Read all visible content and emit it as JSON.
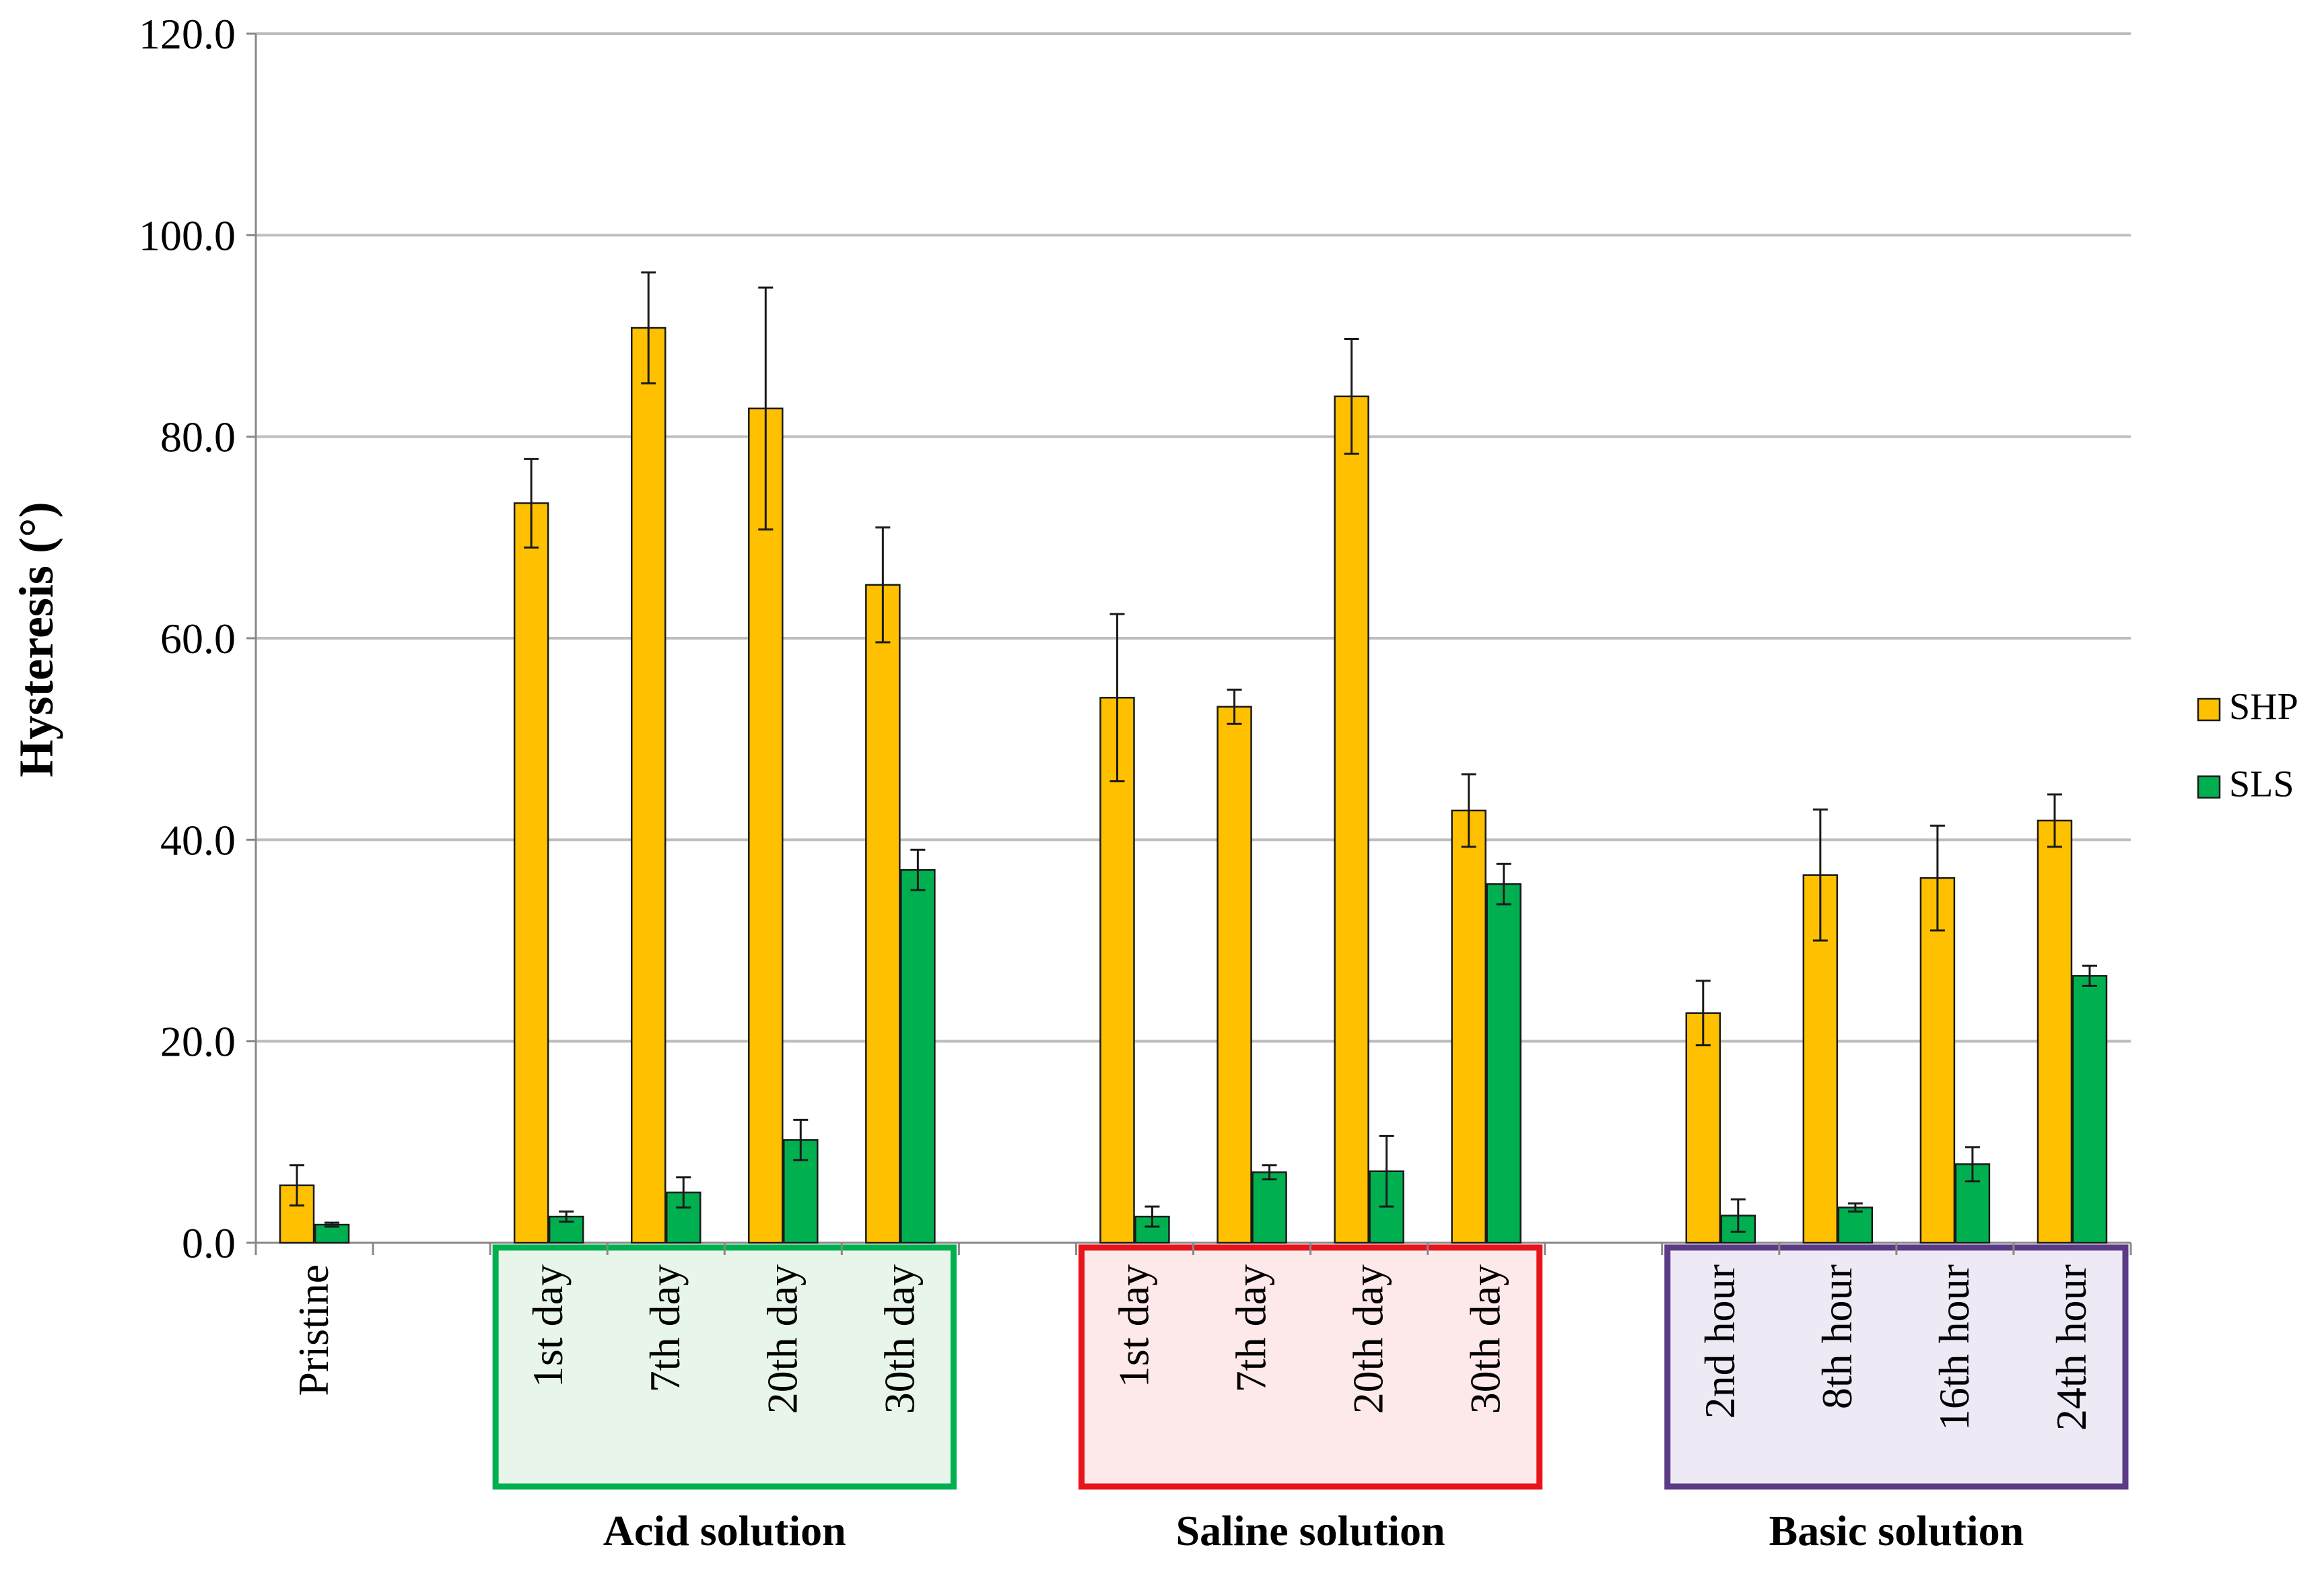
{
  "chart_data": {
    "type": "bar",
    "title": "",
    "xlabel": "",
    "ylabel": "Hysteresis (°)",
    "ylim": [
      0,
      120
    ],
    "yticks": [
      0,
      20,
      40,
      60,
      80,
      100,
      120
    ],
    "ytick_labels": [
      "0.0",
      "20.0",
      "40.0",
      "60.0",
      "80.0",
      "100.0",
      "120.0"
    ],
    "grid": true,
    "legend_position": "right",
    "categories": [
      "Pristine",
      "1st day",
      "7th day",
      "20th day",
      "30th day",
      "1st day",
      "7th day",
      "20th day",
      "30th day",
      "2nd hour",
      "8th hour",
      "16th hour",
      "24th hour"
    ],
    "series": [
      {
        "name": "SHP",
        "color": "#FFC000",
        "values": [
          5.7,
          73.4,
          90.8,
          82.8,
          65.3,
          54.1,
          53.2,
          84.0,
          42.9,
          22.8,
          36.5,
          36.2,
          41.9
        ],
        "errors": [
          2.0,
          4.4,
          5.5,
          12.0,
          5.7,
          8.3,
          1.7,
          5.7,
          3.6,
          3.2,
          6.5,
          5.2,
          2.6
        ]
      },
      {
        "name": "SLS",
        "color": "#00B050",
        "values": [
          1.8,
          2.6,
          5.0,
          10.2,
          37.0,
          2.6,
          7.0,
          7.1,
          35.6,
          2.7,
          3.5,
          7.8,
          26.5
        ],
        "errors": [
          0.2,
          0.5,
          1.5,
          2.0,
          2.0,
          1.0,
          0.7,
          3.5,
          2.0,
          1.6,
          0.4,
          1.7,
          1.0
        ]
      }
    ],
    "groups": [
      {
        "label": "Acid solution",
        "first": 1,
        "last": 4,
        "border": "#00B050",
        "fill": "#E8F5EA"
      },
      {
        "label": "Saline solution",
        "first": 5,
        "last": 8,
        "border": "#E8141C",
        "fill": "#FDE8EA"
      },
      {
        "label": "Basic solution",
        "first": 9,
        "last": 12,
        "border": "#5B3B86",
        "fill": "#EEEAF5"
      }
    ]
  }
}
